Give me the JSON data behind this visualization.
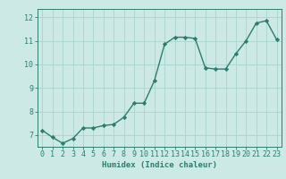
{
  "x": [
    0,
    1,
    2,
    3,
    4,
    5,
    6,
    7,
    8,
    9,
    10,
    11,
    12,
    13,
    14,
    15,
    16,
    17,
    18,
    19,
    20,
    21,
    22,
    23
  ],
  "y": [
    7.2,
    6.9,
    6.65,
    6.85,
    7.3,
    7.3,
    7.4,
    7.45,
    7.75,
    8.35,
    8.35,
    9.3,
    10.85,
    11.15,
    11.15,
    11.1,
    9.85,
    9.8,
    9.8,
    10.45,
    11.0,
    11.75,
    11.85,
    11.05
  ],
  "line_color": "#2d7d6e",
  "marker": "D",
  "marker_size": 2.2,
  "bg_color": "#cce9e5",
  "grid_color": "#aad4cf",
  "xlabel": "Humidex (Indice chaleur)",
  "ylim": [
    6.5,
    12.35
  ],
  "xlim": [
    -0.5,
    23.5
  ],
  "yticks": [
    7,
    8,
    9,
    10,
    11,
    12
  ],
  "xticks": [
    0,
    1,
    2,
    3,
    4,
    5,
    6,
    7,
    8,
    9,
    10,
    11,
    12,
    13,
    14,
    15,
    16,
    17,
    18,
    19,
    20,
    21,
    22,
    23
  ],
  "tick_color": "#2d7d6e",
  "label_fontsize": 6.5,
  "tick_fontsize": 6.0,
  "line_width": 1.0
}
